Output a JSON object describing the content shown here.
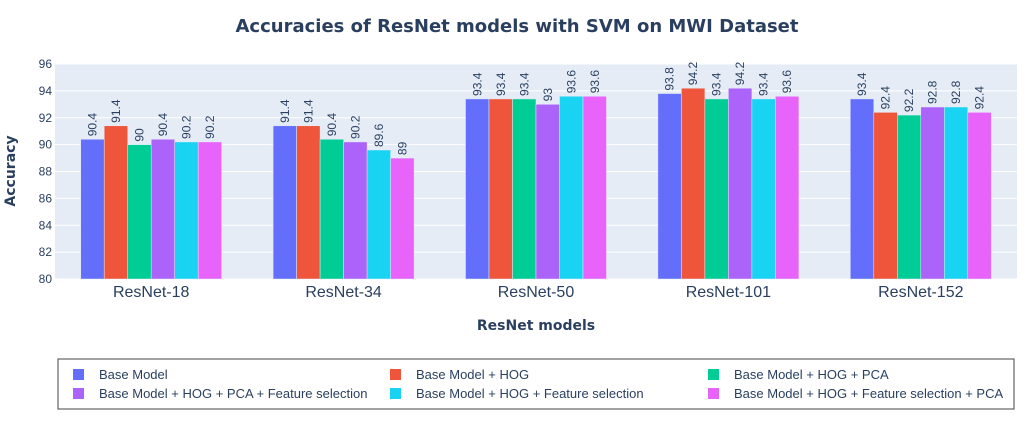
{
  "chart_data": {
    "type": "bar",
    "title": "Accuracies of ResNet models with SVM on MWI Dataset",
    "xlabel": "ResNet models",
    "ylabel": "Accuracy",
    "ylim": [
      80,
      96
    ],
    "yticks": [
      "80",
      "82",
      "84",
      "86",
      "88",
      "90",
      "92",
      "94",
      "96"
    ],
    "grid": true,
    "legend_position": "bottom",
    "categories": [
      "ResNet-18",
      "ResNet-34",
      "ResNet-50",
      "ResNet-101",
      "ResNet-152"
    ],
    "series": [
      {
        "name": "Base Model",
        "color": "#636efa",
        "values": [
          90.4,
          91.4,
          93.4,
          93.8,
          93.4
        ],
        "labels": [
          "90.4",
          "91.4",
          "93.4",
          "93.8",
          "93.4"
        ]
      },
      {
        "name": "Base Model +  HOG",
        "color": "#ef553b",
        "values": [
          91.4,
          91.4,
          93.4,
          94.2,
          92.4
        ],
        "labels": [
          "91.4",
          "91.4",
          "93.4",
          "94.2",
          "92.4"
        ]
      },
      {
        "name": "Base Model +  HOG + PCA",
        "color": "#00cc96",
        "values": [
          90,
          90.4,
          93.4,
          93.4,
          92.2
        ],
        "labels": [
          "90",
          "90.4",
          "93.4",
          "93.4",
          "92.2"
        ]
      },
      {
        "name": "Base Model +  HOG + PCA + Feature selection",
        "color": "#ab63fa",
        "values": [
          90.4,
          90.2,
          93,
          94.2,
          92.8
        ],
        "labels": [
          "90.4",
          "90.2",
          "93",
          "94.2",
          "92.8"
        ]
      },
      {
        "name": "Base Model +  HOG + Feature selection",
        "color": "#19d3f3",
        "values": [
          90.2,
          89.6,
          93.6,
          93.4,
          92.8
        ],
        "labels": [
          "90.2",
          "89.6",
          "93.6",
          "93.4",
          "92.8"
        ]
      },
      {
        "name": "Base Model +  HOG + Feature selection + PCA",
        "color": "#e763fa",
        "values": [
          90.2,
          89,
          93.6,
          93.6,
          92.4
        ],
        "labels": [
          "90.2",
          "89",
          "93.6",
          "93.6",
          "92.4"
        ]
      }
    ]
  }
}
